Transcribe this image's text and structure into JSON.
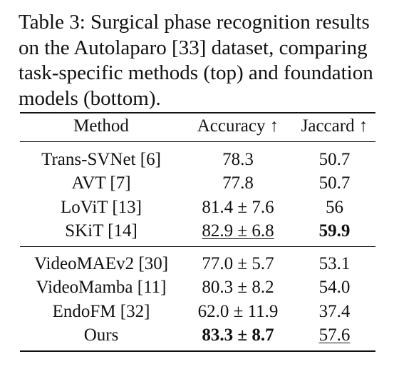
{
  "caption": {
    "lines": [
      "Table 3: Surgical phase recognition results",
      "on the Autolaparo [33] dataset, comparing",
      "task-specific methods (top) and foundation",
      "models (bottom)."
    ]
  },
  "table": {
    "headers": [
      "Method",
      "Accuracy ↑",
      "Jaccard ↑"
    ],
    "groups": [
      {
        "rows": [
          {
            "method": "Trans-SVNet [6]",
            "accuracy": "78.3",
            "jaccard": "50.7"
          },
          {
            "method": "AVT [7]",
            "accuracy": "77.8",
            "jaccard": "50.7"
          },
          {
            "method": "LoViT [13]",
            "accuracy": "81.4 ± 7.6",
            "jaccard": "56"
          },
          {
            "method": "SKiT [14]",
            "accuracy": "82.9 ± 6.8",
            "jaccard": "59.9"
          }
        ]
      },
      {
        "rows": [
          {
            "method": "VideoMAEv2 [30]",
            "accuracy": "77.0 ± 5.7",
            "jaccard": "53.1"
          },
          {
            "method": "VideoMamba [11]",
            "accuracy": "80.3 ± 8.2",
            "jaccard": "54.0"
          },
          {
            "method": "EndoFM [32]",
            "accuracy": "62.0 ± 11.9",
            "jaccard": "37.4"
          },
          {
            "method": "Ours",
            "accuracy": "83.3 ± 8.7",
            "jaccard": "57.6"
          }
        ]
      }
    ]
  }
}
